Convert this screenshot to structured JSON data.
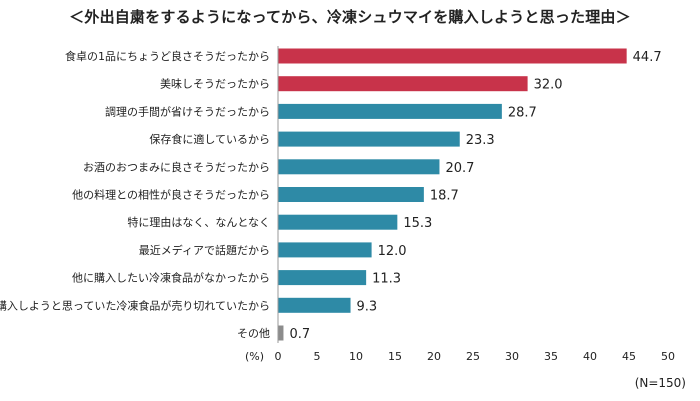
{
  "chart_data": {
    "type": "bar",
    "orientation": "horizontal",
    "title": "＜外出自粛をするようになってから、冷凍シュウマイを購入しようと思った理由＞",
    "categories": [
      "食卓の1品にちょうど良さそうだったから",
      "美味しそうだったから",
      "調理の手間が省けそうだったから",
      "保存食に適しているから",
      "お酒のおつまみに良さそうだったから",
      "他の料理との相性が良さそうだったから",
      "特に理由はなく、なんとなく",
      "最近メディアで話題だから",
      "他に購入したい冷凍食品がなかったから",
      "購入しようと思っていた冷凍食品が売り切れていたから",
      "その他"
    ],
    "values": [
      44.7,
      32.0,
      28.7,
      23.3,
      20.7,
      18.7,
      15.3,
      12.0,
      11.3,
      9.3,
      0.7
    ],
    "value_labels": [
      "44.7",
      "32.0",
      "28.7",
      "23.3",
      "20.7",
      "18.7",
      "15.3",
      "12.0",
      "11.3",
      "9.3",
      "0.7"
    ],
    "bar_colors": [
      "#c8334a",
      "#c8334a",
      "#2e8aa6",
      "#2e8aa6",
      "#2e8aa6",
      "#2e8aa6",
      "#2e8aa6",
      "#2e8aa6",
      "#2e8aa6",
      "#2e8aa6",
      "#8c8c8c"
    ],
    "xlim": [
      0,
      50
    ],
    "x_ticks": [
      "0",
      "5",
      "10",
      "15",
      "20",
      "25",
      "30",
      "35",
      "40",
      "45",
      "50"
    ],
    "x_unit_label": "(%)",
    "grid": false,
    "sample_note": "(N=150)"
  }
}
